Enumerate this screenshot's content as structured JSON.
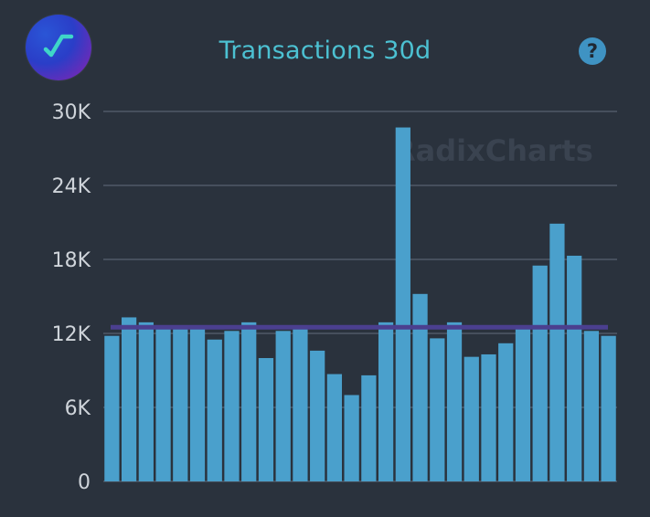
{
  "header": {
    "title": "Transactions 30d",
    "help_symbol": "?",
    "logo_icon": "radixcharts-logo-icon"
  },
  "watermark": "RadixCharts",
  "colors": {
    "background": "#2a323d",
    "bar": "#4aa0cc",
    "average_line": "#4b3f8f",
    "grid": "#4f5968",
    "title": "#4cc1d2"
  },
  "chart_data": {
    "type": "bar",
    "title": "Transactions 30d",
    "xlabel": "",
    "ylabel": "",
    "ylim": [
      0,
      30000
    ],
    "yticks": [
      0,
      6000,
      12000,
      18000,
      24000,
      30000
    ],
    "ytick_labels": [
      "0",
      "6K",
      "12K",
      "18K",
      "24K",
      "30K"
    ],
    "grid": true,
    "values": [
      11800,
      13300,
      12900,
      12400,
      12400,
      12400,
      11500,
      12200,
      12900,
      10000,
      12200,
      12400,
      10600,
      8700,
      7000,
      8600,
      12900,
      28700,
      15200,
      11600,
      12900,
      10100,
      10300,
      11200,
      12400,
      17500,
      20900,
      18300,
      12200,
      11800
    ],
    "average_line": 12500
  }
}
